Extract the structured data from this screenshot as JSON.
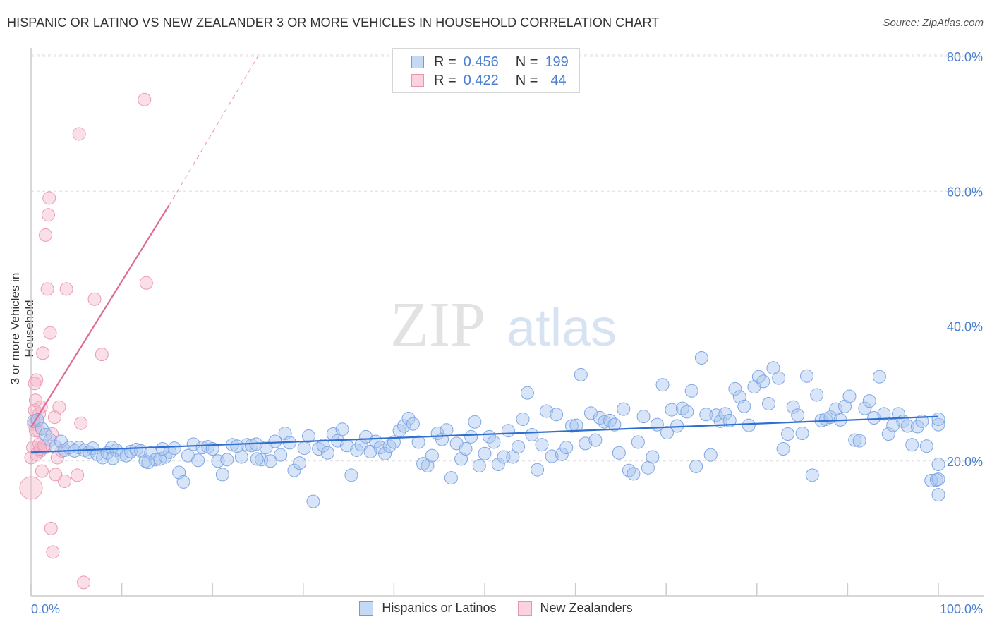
{
  "header": {
    "title": "HISPANIC OR LATINO VS NEW ZEALANDER 3 OR MORE VEHICLES IN HOUSEHOLD CORRELATION CHART",
    "source": "Source: ZipAtlas.com"
  },
  "watermark": {
    "zip": "ZIP",
    "atlas": "atlas"
  },
  "legend_top": {
    "rows": [
      {
        "r_label": "R =",
        "r_value": "0.456",
        "n_label": "N =",
        "n_value": "199",
        "color": "#a9c6f0"
      },
      {
        "r_label": "R =",
        "r_value": "0.422",
        "n_label": "N =",
        "n_value": "44",
        "color": "#f5b8ca"
      }
    ]
  },
  "legend_bottom": [
    {
      "label": "Hispanics or Latinos",
      "color": "#a9c6f0"
    },
    {
      "label": "New Zealanders",
      "color": "#f5b8ca"
    }
  ],
  "colors": {
    "blue": "#4a7fd0",
    "blue_fill": "#a9c6f0",
    "pink": "#de6b93",
    "pink_fill": "#f5b8ca",
    "grid": "#dddddd"
  },
  "chart_data": {
    "type": "scatter",
    "title": "HISPANIC OR LATINO VS NEW ZEALANDER 3 OR MORE VEHICLES IN HOUSEHOLD CORRELATION CHART",
    "xlabel": "",
    "ylabel": "3 or more Vehicles in Household",
    "xlim": [
      0,
      100
    ],
    "ylim": [
      0,
      80
    ],
    "x_tick_labels": [
      "0.0%",
      "100.0%"
    ],
    "y_tick_labels": [
      "20.0%",
      "40.0%",
      "60.0%",
      "80.0%"
    ],
    "y_ticks": [
      20,
      40,
      60,
      80
    ],
    "grid": true,
    "legend_position": "top-center",
    "series": [
      {
        "name": "Hispanics or Latinos",
        "r": 0.456,
        "n": 199,
        "trend": {
          "x": [
            0,
            100
          ],
          "y": [
            21.3,
            26.6
          ]
        },
        "points": [
          [
            0.3,
            25.9
          ],
          [
            0.7,
            26.1
          ],
          [
            1.2,
            24.8
          ],
          [
            1.6,
            23.9
          ],
          [
            2.1,
            23.1
          ],
          [
            2.7,
            22.1
          ],
          [
            3.3,
            22.9
          ],
          [
            3.7,
            21.6
          ],
          [
            4.2,
            22.0
          ],
          [
            4.8,
            21.5
          ],
          [
            5.3,
            22.0
          ],
          [
            5.9,
            21.6
          ],
          [
            6.4,
            21.3
          ],
          [
            6.8,
            21.9
          ],
          [
            7.3,
            21.0
          ],
          [
            7.9,
            20.5
          ],
          [
            8.4,
            21.2
          ],
          [
            8.9,
            22.0
          ],
          [
            9.4,
            21.6
          ],
          [
            10.0,
            21.0
          ],
          [
            10.5,
            20.8
          ],
          [
            11.0,
            21.4
          ],
          [
            11.6,
            21.7
          ],
          [
            12.1,
            21.5
          ],
          [
            12.6,
            20.0
          ],
          [
            13.2,
            21.2
          ],
          [
            13.7,
            20.2
          ],
          [
            14.2,
            20.3
          ],
          [
            14.8,
            20.6
          ],
          [
            15.3,
            21.3
          ],
          [
            15.8,
            21.9
          ],
          [
            16.3,
            18.3
          ],
          [
            16.8,
            16.9
          ],
          [
            17.3,
            20.8
          ],
          [
            17.9,
            22.5
          ],
          [
            18.4,
            20.1
          ],
          [
            18.9,
            22.0
          ],
          [
            19.5,
            22.1
          ],
          [
            20.0,
            21.8
          ],
          [
            20.6,
            20.0
          ],
          [
            21.1,
            18.0
          ],
          [
            21.6,
            20.2
          ],
          [
            22.2,
            22.4
          ],
          [
            22.7,
            22.2
          ],
          [
            23.2,
            20.6
          ],
          [
            23.8,
            22.4
          ],
          [
            24.3,
            22.3
          ],
          [
            24.8,
            22.5
          ],
          [
            25.4,
            20.2
          ],
          [
            25.9,
            22.0
          ],
          [
            26.4,
            20.0
          ],
          [
            26.9,
            22.9
          ],
          [
            27.5,
            20.9
          ],
          [
            28.0,
            24.1
          ],
          [
            28.5,
            22.7
          ],
          [
            29.0,
            18.6
          ],
          [
            29.6,
            19.7
          ],
          [
            30.1,
            21.9
          ],
          [
            30.6,
            23.7
          ],
          [
            31.1,
            14.0
          ],
          [
            31.7,
            21.8
          ],
          [
            32.2,
            22.3
          ],
          [
            32.7,
            21.2
          ],
          [
            33.3,
            24.0
          ],
          [
            33.8,
            23.0
          ],
          [
            34.3,
            24.7
          ],
          [
            34.8,
            22.3
          ],
          [
            35.3,
            17.9
          ],
          [
            35.9,
            21.6
          ],
          [
            36.4,
            22.4
          ],
          [
            36.9,
            23.6
          ],
          [
            37.4,
            21.4
          ],
          [
            38.0,
            22.9
          ],
          [
            38.5,
            22.0
          ],
          [
            39.0,
            21.1
          ],
          [
            39.5,
            22.2
          ],
          [
            40.0,
            22.8
          ],
          [
            40.6,
            24.5
          ],
          [
            41.1,
            25.2
          ],
          [
            41.6,
            26.3
          ],
          [
            42.1,
            25.5
          ],
          [
            42.7,
            22.8
          ],
          [
            43.2,
            19.6
          ],
          [
            43.7,
            19.3
          ],
          [
            44.2,
            20.8
          ],
          [
            44.8,
            24.1
          ],
          [
            45.3,
            23.2
          ],
          [
            45.8,
            24.6
          ],
          [
            46.3,
            17.5
          ],
          [
            46.9,
            22.6
          ],
          [
            47.4,
            20.3
          ],
          [
            47.9,
            21.8
          ],
          [
            48.5,
            23.6
          ],
          [
            48.9,
            25.8
          ],
          [
            49.4,
            19.3
          ],
          [
            50.0,
            21.1
          ],
          [
            50.5,
            23.6
          ],
          [
            51.0,
            22.8
          ],
          [
            51.5,
            19.5
          ],
          [
            52.1,
            20.6
          ],
          [
            52.6,
            24.5
          ],
          [
            53.1,
            20.6
          ],
          [
            53.7,
            22.1
          ],
          [
            54.2,
            26.2
          ],
          [
            54.7,
            30.1
          ],
          [
            55.2,
            23.9
          ],
          [
            55.8,
            18.7
          ],
          [
            56.3,
            22.4
          ],
          [
            56.8,
            27.4
          ],
          [
            57.4,
            20.7
          ],
          [
            57.9,
            26.9
          ],
          [
            58.5,
            21.0
          ],
          [
            59.0,
            22.0
          ],
          [
            59.6,
            25.2
          ],
          [
            60.1,
            25.3
          ],
          [
            60.6,
            32.8
          ],
          [
            61.1,
            22.6
          ],
          [
            61.7,
            27.1
          ],
          [
            62.2,
            23.1
          ],
          [
            62.7,
            26.4
          ],
          [
            63.2,
            25.8
          ],
          [
            63.8,
            26.0
          ],
          [
            64.3,
            25.4
          ],
          [
            64.8,
            21.2
          ],
          [
            65.3,
            27.7
          ],
          [
            65.9,
            18.6
          ],
          [
            66.4,
            18.1
          ],
          [
            66.9,
            22.8
          ],
          [
            67.5,
            26.6
          ],
          [
            68.0,
            19.0
          ],
          [
            68.5,
            20.6
          ],
          [
            69.0,
            25.4
          ],
          [
            69.6,
            31.3
          ],
          [
            70.1,
            24.2
          ],
          [
            70.6,
            27.6
          ],
          [
            71.2,
            25.2
          ],
          [
            71.8,
            27.8
          ],
          [
            72.3,
            27.3
          ],
          [
            72.8,
            30.4
          ],
          [
            73.3,
            19.2
          ],
          [
            73.9,
            35.3
          ],
          [
            74.4,
            26.9
          ],
          [
            74.9,
            20.9
          ],
          [
            75.5,
            26.8
          ],
          [
            76.0,
            25.9
          ],
          [
            76.5,
            27.0
          ],
          [
            77.0,
            26.0
          ],
          [
            77.6,
            30.7
          ],
          [
            78.1,
            29.5
          ],
          [
            78.6,
            28.1
          ],
          [
            79.1,
            25.3
          ],
          [
            79.7,
            31.0
          ],
          [
            80.2,
            32.5
          ],
          [
            80.7,
            31.8
          ],
          [
            81.3,
            28.5
          ],
          [
            81.8,
            33.8
          ],
          [
            82.4,
            32.3
          ],
          [
            82.9,
            21.8
          ],
          [
            83.4,
            24.0
          ],
          [
            84.0,
            28.0
          ],
          [
            84.5,
            26.8
          ],
          [
            85.0,
            24.1
          ],
          [
            85.5,
            32.6
          ],
          [
            86.1,
            17.9
          ],
          [
            86.6,
            29.8
          ],
          [
            87.1,
            26.0
          ],
          [
            87.6,
            26.2
          ],
          [
            88.1,
            26.5
          ],
          [
            88.7,
            27.7
          ],
          [
            89.2,
            26.1
          ],
          [
            89.7,
            28.1
          ],
          [
            90.2,
            29.6
          ],
          [
            90.8,
            23.1
          ],
          [
            91.3,
            23.0
          ],
          [
            91.9,
            27.8
          ],
          [
            92.4,
            28.9
          ],
          [
            92.9,
            26.4
          ],
          [
            93.5,
            32.5
          ],
          [
            94.0,
            27.0
          ],
          [
            94.5,
            24.0
          ],
          [
            95.0,
            25.3
          ],
          [
            95.6,
            27.0
          ],
          [
            96.1,
            25.9
          ],
          [
            96.6,
            25.2
          ],
          [
            97.1,
            22.4
          ],
          [
            97.7,
            25.1
          ],
          [
            98.2,
            25.9
          ],
          [
            98.7,
            22.2
          ],
          [
            99.2,
            17.1
          ],
          [
            99.8,
            17.2
          ],
          [
            100.0,
            25.4
          ],
          [
            100.0,
            15.0
          ],
          [
            100.0,
            17.3
          ],
          [
            100.0,
            19.5
          ],
          [
            100.0,
            26.2
          ],
          [
            9.0,
            20.4
          ],
          [
            12.9,
            19.8
          ],
          [
            24.9,
            20.3
          ],
          [
            14.5,
            21.8
          ]
        ]
      },
      {
        "name": "New Zealanders",
        "r": 0.422,
        "n": 44,
        "trend": {
          "x": [
            0,
            15.2
          ],
          "y": [
            25.0,
            57.9
          ],
          "extended": {
            "x": [
              15.2,
              25.0
            ],
            "y": [
              57.9,
              80.0
            ]
          }
        },
        "points": [
          [
            0.0,
            16.0
          ],
          [
            0.0,
            20.5
          ],
          [
            0.2,
            22.0
          ],
          [
            0.3,
            25.5
          ],
          [
            0.4,
            27.5
          ],
          [
            0.5,
            29.0
          ],
          [
            0.6,
            32.0
          ],
          [
            0.7,
            26.0
          ],
          [
            0.8,
            24.5
          ],
          [
            0.9,
            22.5
          ],
          [
            1.0,
            21.5
          ],
          [
            1.1,
            28.0
          ],
          [
            1.2,
            18.5
          ],
          [
            1.3,
            36.0
          ],
          [
            1.5,
            22.0
          ],
          [
            1.6,
            53.5
          ],
          [
            1.8,
            45.5
          ],
          [
            1.9,
            56.5
          ],
          [
            2.0,
            59.0
          ],
          [
            2.1,
            39.0
          ],
          [
            2.2,
            10.0
          ],
          [
            2.3,
            24.0
          ],
          [
            2.4,
            6.5
          ],
          [
            2.6,
            26.5
          ],
          [
            2.7,
            18.0
          ],
          [
            2.9,
            20.5
          ],
          [
            3.1,
            28.0
          ],
          [
            3.4,
            21.5
          ],
          [
            3.7,
            17.0
          ],
          [
            3.9,
            45.5
          ],
          [
            5.1,
            17.9
          ],
          [
            5.3,
            68.5
          ],
          [
            5.5,
            25.6
          ],
          [
            5.8,
            2.0
          ],
          [
            7.0,
            44.0
          ],
          [
            7.8,
            35.8
          ],
          [
            12.5,
            73.6
          ],
          [
            12.7,
            46.4
          ],
          [
            0.4,
            31.5
          ],
          [
            0.6,
            21.0
          ],
          [
            1.0,
            21.8
          ],
          [
            0.9,
            27.0
          ],
          [
            0.5,
            24.5
          ],
          [
            1.4,
            22.3
          ]
        ]
      }
    ]
  }
}
